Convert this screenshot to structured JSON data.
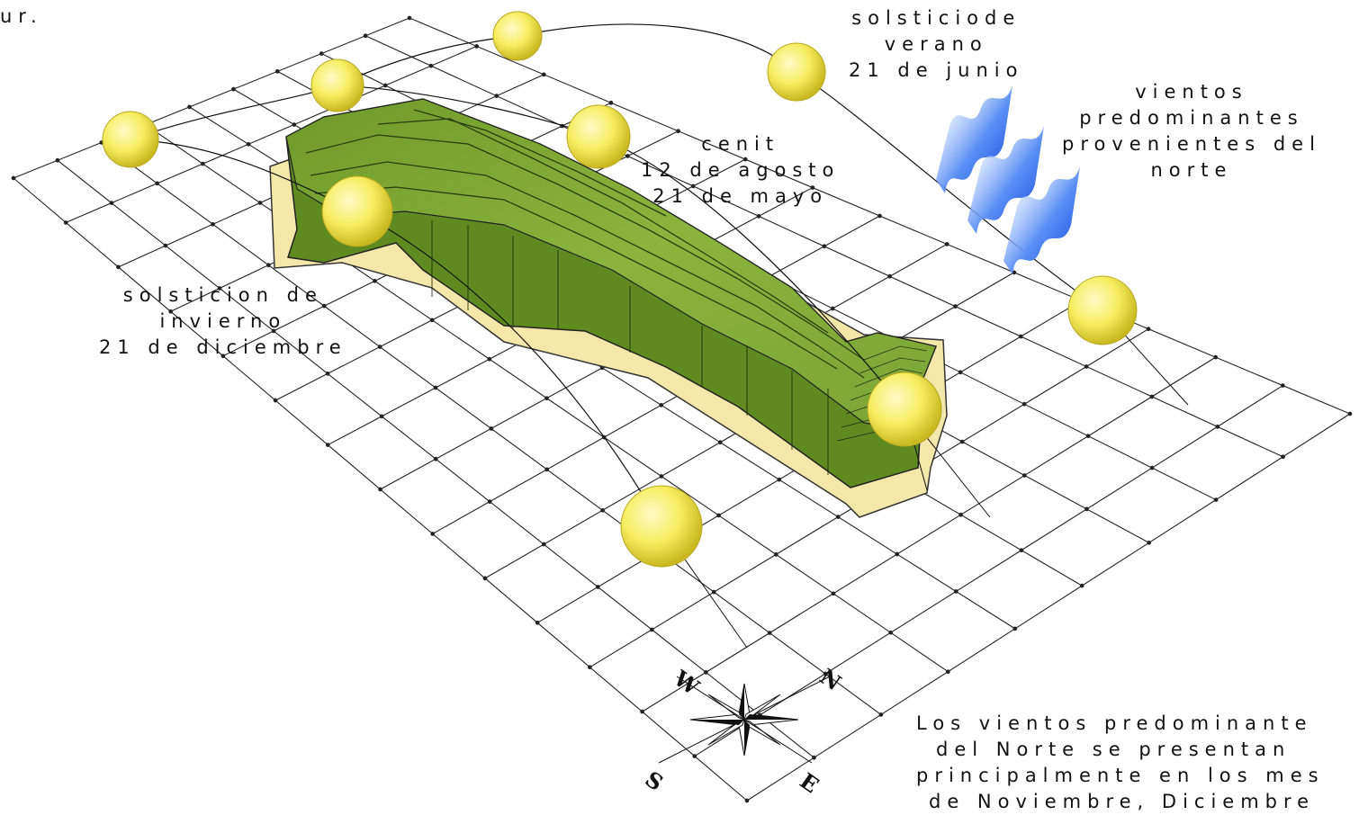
{
  "top_note": [
    "ur."
  ],
  "labels": {
    "summer_solstice": [
      "solsticiode",
      "verano",
      "21 de junio"
    ],
    "prevailing_winds": [
      "vientos",
      "predominantes",
      "provenientes del",
      "norte"
    ],
    "zenith": [
      "cenit",
      "12 de agosto",
      "21 de mayo"
    ],
    "winter_solstice": [
      "solsticion de",
      "invierno",
      "21 de diciembre"
    ]
  },
  "bottom_note": [
    "Los vientos predominante",
    "del Norte se presentan",
    "principalmente en los mes",
    "de Noviembre, Diciembre"
  ],
  "compass": {
    "n": "N",
    "s": "S",
    "e": "E",
    "w": "W"
  },
  "colors": {
    "terrain_top": "#86b03a",
    "terrain_side": "#5f8a20",
    "base_slab": "#f3e7aa",
    "sun": "#f6ec5e",
    "wind": "#1f5fe8",
    "grid": "#222222"
  },
  "sun_path": {
    "suns_on_summer_arc": 4,
    "suns_on_zenith_arc": 3,
    "suns_on_winter_arc": 2
  }
}
